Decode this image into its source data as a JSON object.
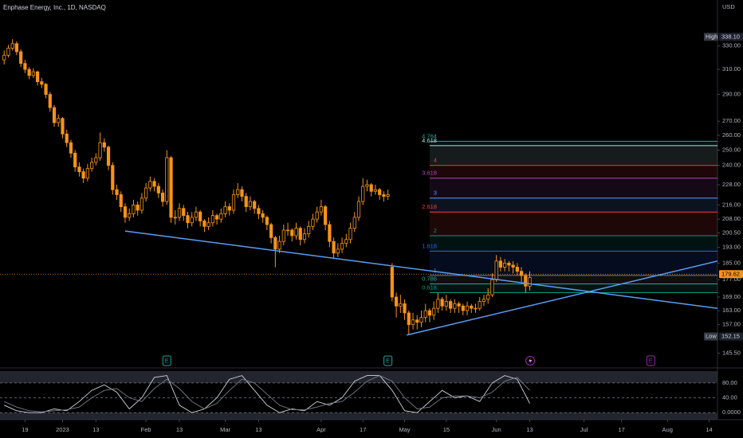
{
  "chart_data": {
    "type": "candlestick",
    "title": "Enphase Energy, Inc., 1D, NASDAQ",
    "currency": "USD",
    "log_scale": true,
    "color": "#f7931a",
    "candles": [
      [
        318,
        326,
        314,
        322
      ],
      [
        322,
        331,
        320,
        328
      ],
      [
        328,
        336,
        326,
        332
      ],
      [
        332,
        334,
        322,
        325
      ],
      [
        325,
        327,
        312,
        315
      ],
      [
        315,
        318,
        307,
        310
      ],
      [
        310,
        312,
        302,
        305
      ],
      [
        305,
        311,
        303,
        308
      ],
      [
        308,
        309,
        297,
        300
      ],
      [
        300,
        303,
        295,
        298
      ],
      [
        298,
        299,
        287,
        290
      ],
      [
        290,
        292,
        277,
        280
      ],
      [
        280,
        282,
        266,
        269
      ],
      [
        269,
        275,
        266,
        272
      ],
      [
        272,
        273,
        258,
        261
      ],
      [
        261,
        264,
        252,
        255
      ],
      [
        255,
        257,
        245,
        248
      ],
      [
        248,
        250,
        236,
        239
      ],
      [
        239,
        242,
        233,
        236
      ],
      [
        236,
        238,
        229,
        232
      ],
      [
        232,
        241,
        230,
        238
      ],
      [
        238,
        245,
        236,
        242
      ],
      [
        242,
        248,
        240,
        245
      ],
      [
        245,
        262,
        243,
        255
      ],
      [
        255,
        258,
        249,
        252
      ],
      [
        252,
        253,
        237,
        240
      ],
      [
        240,
        242,
        222,
        225
      ],
      [
        225,
        228,
        219,
        222
      ],
      [
        222,
        224,
        212,
        215
      ],
      [
        215,
        217,
        206,
        209
      ],
      [
        209,
        214,
        207,
        211
      ],
      [
        211,
        219,
        209,
        216
      ],
      [
        216,
        218,
        210,
        213
      ],
      [
        213,
        223,
        211,
        220
      ],
      [
        220,
        229,
        218,
        226
      ],
      [
        226,
        233,
        224,
        230
      ],
      [
        230,
        232,
        224,
        227
      ],
      [
        227,
        229,
        220,
        223
      ],
      [
        223,
        225,
        215,
        218
      ],
      [
        218,
        250,
        216,
        245
      ],
      [
        245,
        246,
        206,
        209
      ],
      [
        209,
        213,
        205,
        209
      ],
      [
        209,
        217,
        207,
        214
      ],
      [
        214,
        216,
        207,
        210
      ],
      [
        210,
        212,
        203,
        206
      ],
      [
        206,
        212,
        204,
        209
      ],
      [
        209,
        215,
        207,
        212
      ],
      [
        212,
        213,
        204,
        207
      ],
      [
        207,
        208,
        201,
        204
      ],
      [
        204,
        209,
        202,
        206
      ],
      [
        206,
        213,
        204,
        210
      ],
      [
        210,
        211,
        205,
        208
      ],
      [
        208,
        214,
        206,
        211
      ],
      [
        211,
        218,
        209,
        215
      ],
      [
        215,
        217,
        210,
        213
      ],
      [
        213,
        225,
        211,
        222
      ],
      [
        222,
        229,
        220,
        225
      ],
      [
        225,
        227,
        218,
        221
      ],
      [
        221,
        223,
        212,
        215
      ],
      [
        215,
        221,
        213,
        218
      ],
      [
        218,
        219,
        211,
        214
      ],
      [
        214,
        216,
        208,
        211
      ],
      [
        211,
        213,
        206,
        209
      ],
      [
        209,
        210,
        202,
        205
      ],
      [
        205,
        206,
        195,
        198
      ],
      [
        198,
        199,
        183,
        192
      ],
      [
        192,
        199,
        190,
        196
      ],
      [
        196,
        205,
        194,
        202
      ],
      [
        202,
        206,
        199,
        202
      ],
      [
        202,
        203,
        196,
        199
      ],
      [
        199,
        206,
        197,
        203
      ],
      [
        203,
        204,
        194,
        197
      ],
      [
        197,
        203,
        195,
        200
      ],
      [
        200,
        207,
        198,
        204
      ],
      [
        204,
        211,
        202,
        208
      ],
      [
        208,
        215,
        206,
        212
      ],
      [
        212,
        219,
        210,
        215
      ],
      [
        215,
        216,
        202,
        205
      ],
      [
        205,
        207,
        193,
        196
      ],
      [
        196,
        198,
        187,
        190
      ],
      [
        190,
        195,
        188,
        192
      ],
      [
        192,
        198,
        190,
        195
      ],
      [
        195,
        200,
        193,
        197
      ],
      [
        197,
        206,
        195,
        203
      ],
      [
        203,
        212,
        201,
        209
      ],
      [
        209,
        221,
        207,
        218
      ],
      [
        218,
        232,
        216,
        227
      ],
      [
        227,
        231,
        224,
        228
      ],
      [
        228,
        229,
        221,
        224
      ],
      [
        224,
        228,
        222,
        225
      ],
      [
        225,
        226,
        219,
        222
      ],
      [
        222,
        224,
        218,
        221
      ],
      [
        221,
        225,
        219,
        222
      ],
      [
        183,
        185,
        167,
        169
      ],
      [
        169,
        171,
        160,
        165
      ],
      [
        165,
        170,
        162,
        166
      ],
      [
        166,
        168,
        159,
        162
      ],
      [
        162,
        163,
        153,
        157
      ],
      [
        157,
        162,
        155,
        159
      ],
      [
        159,
        161,
        155,
        158
      ],
      [
        158,
        163,
        156,
        160
      ],
      [
        160,
        166,
        158,
        163
      ],
      [
        163,
        164,
        158,
        161
      ],
      [
        161,
        167,
        159,
        164
      ],
      [
        164,
        171,
        162,
        168
      ],
      [
        168,
        169,
        163,
        165
      ],
      [
        165,
        170,
        163,
        167
      ],
      [
        167,
        168,
        162,
        164
      ],
      [
        164,
        168,
        162,
        166
      ],
      [
        166,
        167,
        162,
        165
      ],
      [
        165,
        166,
        161,
        163
      ],
      [
        163,
        167,
        161,
        165
      ],
      [
        165,
        166,
        162,
        164
      ],
      [
        164,
        166,
        162,
        164
      ],
      [
        164,
        169,
        163,
        167
      ],
      [
        167,
        170,
        165,
        168
      ],
      [
        168,
        173,
        166,
        170
      ],
      [
        170,
        180,
        169,
        177
      ],
      [
        177,
        189,
        176,
        186
      ],
      [
        186,
        188,
        181,
        183
      ],
      [
        183,
        187,
        181,
        185
      ],
      [
        185,
        186,
        181,
        184
      ],
      [
        184,
        186,
        180,
        183
      ],
      [
        183,
        185,
        179,
        181
      ],
      [
        181,
        183,
        176,
        179
      ],
      [
        179,
        180,
        171,
        174
      ],
      [
        174,
        181,
        172,
        178
      ]
    ],
    "ylim": [
      142,
      373
    ],
    "yticks": [
      {
        "value": 145.5,
        "label": "145.50"
      },
      {
        "value": 157,
        "label": "157.00"
      },
      {
        "value": 163,
        "label": "163.00"
      },
      {
        "value": 169,
        "label": "169.00"
      },
      {
        "value": 177,
        "label": "177.00"
      },
      {
        "value": 185,
        "label": "185.00"
      },
      {
        "value": 193,
        "label": "193.00"
      },
      {
        "value": 200.5,
        "label": "200.50"
      },
      {
        "value": 208,
        "label": "208.00"
      },
      {
        "value": 216,
        "label": "216.00"
      },
      {
        "value": 228,
        "label": "228.00"
      },
      {
        "value": 240,
        "label": "240.00"
      },
      {
        "value": 250,
        "label": "250.00"
      },
      {
        "value": 260,
        "label": "260.00"
      },
      {
        "value": 270,
        "label": "270.00"
      },
      {
        "value": 290,
        "label": "290.00"
      },
      {
        "value": 310,
        "label": "310.00"
      },
      {
        "value": 330,
        "label": "330.00"
      }
    ],
    "xlim": [
      -1,
      171
    ],
    "xticks": [
      {
        "value": 5,
        "label": "19"
      },
      {
        "value": 14,
        "label": "2023"
      },
      {
        "value": 22,
        "label": "13"
      },
      {
        "value": 34,
        "label": "Feb"
      },
      {
        "value": 42,
        "label": "13"
      },
      {
        "value": 53,
        "label": "Mar"
      },
      {
        "value": 61,
        "label": "13"
      },
      {
        "value": 76,
        "label": "Apr"
      },
      {
        "value": 86,
        "label": "17"
      },
      {
        "value": 96,
        "label": "May"
      },
      {
        "value": 106,
        "label": "15"
      },
      {
        "value": 118,
        "label": "Jun"
      },
      {
        "value": 126,
        "label": "13"
      },
      {
        "value": 139,
        "label": "Jul"
      },
      {
        "value": 148,
        "label": "17"
      },
      {
        "value": 159,
        "label": "Aug"
      },
      {
        "value": 169,
        "label": "14"
      }
    ],
    "high": {
      "label": "High",
      "value": 338.1,
      "value_label": "338.10"
    },
    "low": {
      "label": "Low",
      "value": 152.15,
      "value_label": "152.15"
    },
    "last": {
      "value": 179.62,
      "color": "#f7931a"
    },
    "fib": {
      "x": [
        102,
        172
      ],
      "levels": [
        {
          "level": 4.764,
          "price": 256,
          "color": "#26a69a"
        },
        {
          "level": 4.618,
          "price": 253,
          "color": "#b2dfdb"
        },
        {
          "level": 4,
          "price": 240,
          "color": "#f23645"
        },
        {
          "level": 3.618,
          "price": 232,
          "color": "#ab47bc"
        },
        {
          "level": 3,
          "price": 220,
          "color": "#5b9cf6"
        },
        {
          "level": 2.618,
          "price": 212,
          "color": "#f44336"
        },
        {
          "level": 2,
          "price": 199,
          "color": "#089981"
        },
        {
          "level": 1.618,
          "price": 191,
          "color": "#2962ff"
        },
        {
          "level": 1,
          "price": 179,
          "color": "#787b86"
        },
        {
          "level": 0.786,
          "price": 175,
          "color": "#26a69a"
        },
        {
          "level": 0.618,
          "price": 171,
          "color": "#089981"
        }
      ]
    },
    "trendlines": [
      {
        "color": "#5b9cf6",
        "x": [
          29,
          171
        ],
        "y": [
          201.5,
          164
        ]
      },
      {
        "color": "#5b9cf6",
        "x": [
          96.5,
          171
        ],
        "y": [
          152.7,
          186
        ]
      }
    ],
    "events": [
      {
        "x": 39,
        "label": "E",
        "color": "#26a69a"
      },
      {
        "x": 92,
        "label": "E",
        "color": "#26a69a"
      },
      {
        "x": 155,
        "label": "E",
        "color": "#9c27b0"
      }
    ],
    "indicator": {
      "ylim": [
        -19,
        112
      ],
      "yticks": [
        {
          "value": 80,
          "label": "80.00"
        },
        {
          "value": 40,
          "label": "40.00"
        },
        {
          "value": 0,
          "label": "0.0000"
        }
      ],
      "x": [
        0,
        3,
        6,
        9,
        12,
        15,
        18,
        21,
        24,
        27,
        30,
        33,
        36,
        39,
        42,
        45,
        48,
        51,
        54,
        57,
        60,
        63,
        66,
        69,
        72,
        75,
        78,
        81,
        84,
        87,
        90,
        93,
        96,
        99,
        102,
        105,
        108,
        111,
        114,
        117,
        120,
        123,
        126
      ],
      "series": [
        {
          "color": "#d1d4dc",
          "values": [
            20,
            5,
            0,
            0,
            10,
            5,
            30,
            60,
            75,
            55,
            10,
            40,
            95,
            100,
            20,
            0,
            10,
            40,
            90,
            100,
            60,
            20,
            0,
            10,
            5,
            30,
            20,
            40,
            85,
            100,
            100,
            60,
            5,
            0,
            30,
            60,
            40,
            45,
            30,
            80,
            100,
            90,
            25
          ]
        },
        {
          "color": "#787b86",
          "values": [
            30,
            15,
            5,
            2,
            5,
            8,
            15,
            40,
            60,
            65,
            40,
            30,
            65,
            90,
            65,
            30,
            10,
            25,
            60,
            90,
            80,
            50,
            20,
            8,
            8,
            15,
            25,
            30,
            55,
            85,
            100,
            85,
            40,
            10,
            15,
            40,
            45,
            45,
            40,
            55,
            85,
            95,
            60
          ]
        }
      ]
    }
  }
}
